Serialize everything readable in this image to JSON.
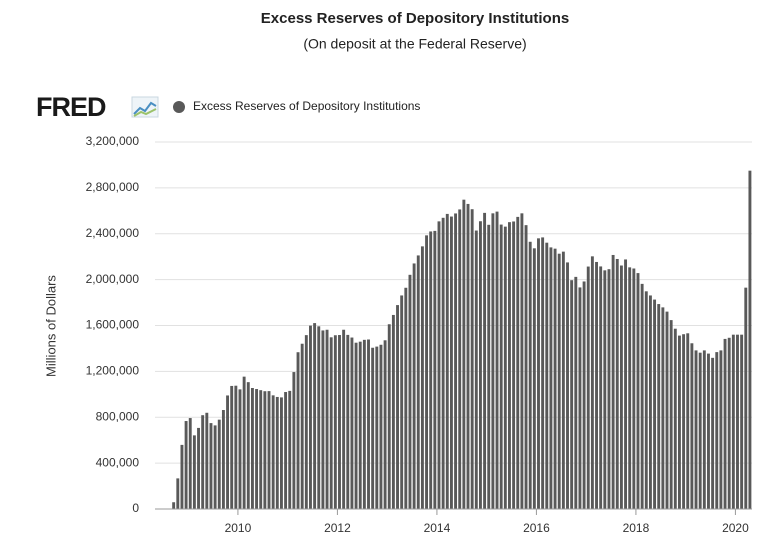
{
  "chart_data": {
    "type": "bar",
    "title": "Excess Reserves of Depository Institutions",
    "subtitle": "(On deposit at the Federal Reserve)",
    "logo": "FRED",
    "y_label": "Millions of Dollars",
    "series": [
      {
        "name": "Excess Reserves of Depository Institutions",
        "color": "#595959",
        "values": [
          59000,
          267000,
          559000,
          767000,
          793000,
          642000,
          707000,
          818000,
          839000,
          749000,
          729000,
          779000,
          863000,
          990000,
          1073000,
          1075000,
          1043000,
          1154000,
          1106000,
          1055000,
          1046000,
          1036000,
          1027000,
          1028000,
          991000,
          977000,
          973000,
          1020000,
          1030000,
          1194000,
          1367000,
          1441000,
          1516000,
          1599000,
          1621000,
          1593000,
          1557000,
          1563000,
          1497000,
          1515000,
          1517000,
          1563000,
          1518000,
          1495000,
          1450000,
          1459000,
          1475000,
          1478000,
          1406000,
          1416000,
          1432000,
          1471000,
          1611000,
          1692000,
          1778000,
          1862000,
          1929000,
          2042000,
          2141000,
          2211000,
          2290000,
          2386000,
          2420000,
          2425000,
          2508000,
          2539000,
          2573000,
          2550000,
          2577000,
          2612000,
          2697000,
          2660000,
          2614000,
          2428000,
          2509000,
          2582000,
          2478000,
          2578000,
          2593000,
          2480000,
          2462000,
          2501000,
          2507000,
          2547000,
          2578000,
          2475000,
          2330000,
          2273000,
          2360000,
          2368000,
          2322000,
          2281000,
          2270000,
          2226000,
          2244000,
          2150000,
          1995000,
          2024000,
          1932000,
          1984000,
          2114000,
          2203000,
          2154000,
          2115000,
          2081000,
          2091000,
          2215000,
          2180000,
          2123000,
          2176000,
          2107000,
          2097000,
          2057000,
          1963000,
          1898000,
          1862000,
          1826000,
          1787000,
          1758000,
          1721000,
          1647000,
          1572000,
          1512000,
          1524000,
          1532000,
          1445000,
          1383000,
          1363000,
          1383000,
          1355000,
          1318000,
          1368000,
          1383000,
          1483000,
          1493000,
          1520000,
          1520000,
          1520000,
          1930000,
          2950000
        ]
      }
    ],
    "x": [
      "2008-09",
      "2008-10",
      "2008-11",
      "2008-12",
      "2009-01",
      "2009-02",
      "2009-03",
      "2009-04",
      "2009-05",
      "2009-06",
      "2009-07",
      "2009-08",
      "2009-09",
      "2009-10",
      "2009-11",
      "2009-12",
      "2010-01",
      "2010-02",
      "2010-03",
      "2010-04",
      "2010-05",
      "2010-06",
      "2010-07",
      "2010-08",
      "2010-09",
      "2010-10",
      "2010-11",
      "2010-12",
      "2011-01",
      "2011-02",
      "2011-03",
      "2011-04",
      "2011-05",
      "2011-06",
      "2011-07",
      "2011-08",
      "2011-09",
      "2011-10",
      "2011-11",
      "2011-12",
      "2012-01",
      "2012-02",
      "2012-03",
      "2012-04",
      "2012-05",
      "2012-06",
      "2012-07",
      "2012-08",
      "2012-09",
      "2012-10",
      "2012-11",
      "2012-12",
      "2013-01",
      "2013-02",
      "2013-03",
      "2013-04",
      "2013-05",
      "2013-06",
      "2013-07",
      "2013-08",
      "2013-09",
      "2013-10",
      "2013-11",
      "2013-12",
      "2014-01",
      "2014-02",
      "2014-03",
      "2014-04",
      "2014-05",
      "2014-06",
      "2014-07",
      "2014-08",
      "2014-09",
      "2014-10",
      "2014-11",
      "2014-12",
      "2015-01",
      "2015-02",
      "2015-03",
      "2015-04",
      "2015-05",
      "2015-06",
      "2015-07",
      "2015-08",
      "2015-09",
      "2015-10",
      "2015-11",
      "2015-12",
      "2016-01",
      "2016-02",
      "2016-03",
      "2016-04",
      "2016-05",
      "2016-06",
      "2016-07",
      "2016-08",
      "2016-09",
      "2016-10",
      "2016-11",
      "2016-12",
      "2017-01",
      "2017-02",
      "2017-03",
      "2017-04",
      "2017-05",
      "2017-06",
      "2017-07",
      "2017-08",
      "2017-09",
      "2017-10",
      "2017-11",
      "2017-12",
      "2018-01",
      "2018-02",
      "2018-03",
      "2018-04",
      "2018-05",
      "2018-06",
      "2018-07",
      "2018-08",
      "2018-09",
      "2018-10",
      "2018-11",
      "2018-12",
      "2019-01",
      "2019-02",
      "2019-03",
      "2019-04",
      "2019-05",
      "2019-06",
      "2019-07",
      "2019-08",
      "2019-09",
      "2019-10",
      "2019-11",
      "2019-12",
      "2020-01",
      "2020-02",
      "2020-03",
      "2020-04"
    ],
    "xlim": [
      "2008-05",
      "2020-05"
    ],
    "xticks": [
      {
        "value": "2010-01",
        "label": "2010"
      },
      {
        "value": "2012-01",
        "label": "2012"
      },
      {
        "value": "2014-01",
        "label": "2014"
      },
      {
        "value": "2016-01",
        "label": "2016"
      },
      {
        "value": "2018-01",
        "label": "2018"
      },
      {
        "value": "2020-01",
        "label": "2020"
      }
    ],
    "ylim": [
      0,
      3200000
    ],
    "yticks": [
      0,
      {
        "value": 400000,
        "label": "400,000"
      },
      {
        "value": 800000,
        "label": "800,000"
      },
      {
        "value": 1200000,
        "label": "1,200,000"
      },
      {
        "value": 1600000,
        "label": "1,600,000"
      },
      {
        "value": 2000000,
        "label": "2,000,000"
      },
      {
        "value": 2400000,
        "label": "2,400,000"
      },
      {
        "value": 2800000,
        "label": "2,800,000"
      },
      {
        "value": 3200000,
        "label": "3,200,000"
      }
    ],
    "grid": true
  }
}
